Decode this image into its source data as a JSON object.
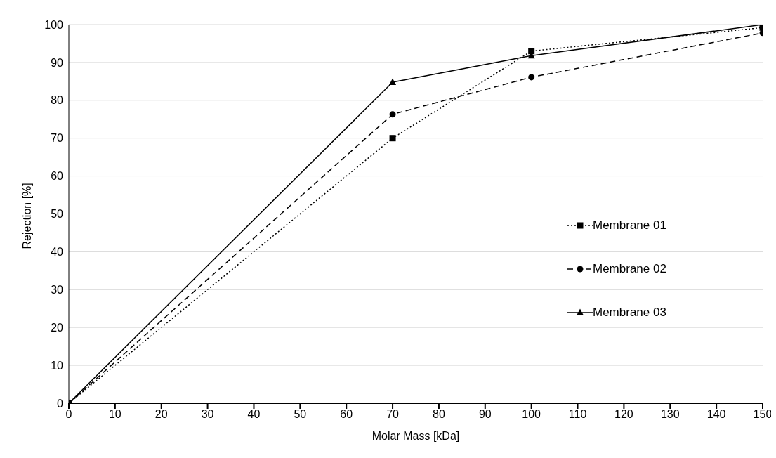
{
  "chart_data": {
    "type": "line",
    "xlabel": "Molar Mass [kDa]",
    "ylabel": "Rejection [%]",
    "x": [
      0,
      70,
      100,
      150
    ],
    "series": [
      {
        "name": "Membrane 01",
        "color": "#000000",
        "values": [
          0,
          70,
          93,
          99.2
        ],
        "marker": "square",
        "line_style": "dotted"
      },
      {
        "name": "Membrane 02",
        "color": "#000000",
        "values": [
          0,
          76.3,
          86.1,
          97.8
        ],
        "marker": "circle",
        "line_style": "dashed"
      },
      {
        "name": "Membrane 03",
        "color": "#000000",
        "values": [
          0,
          84.8,
          91.8,
          100
        ],
        "marker": "triangle",
        "line_style": "solid"
      }
    ],
    "xlim": [
      0,
      150
    ],
    "xticks": [
      0,
      10,
      20,
      30,
      40,
      50,
      60,
      70,
      80,
      90,
      100,
      110,
      120,
      130,
      140,
      150
    ],
    "ylim": [
      0,
      100
    ],
    "yticks": [
      0,
      10,
      20,
      30,
      40,
      50,
      60,
      70,
      80,
      90,
      100
    ],
    "grid": "y",
    "legend": "right"
  }
}
